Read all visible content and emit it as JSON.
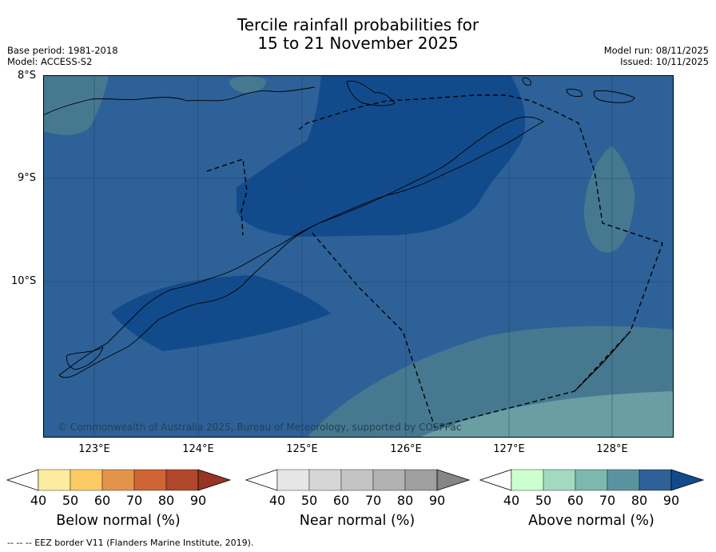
{
  "title_line1": "Tercile rainfall probabilities for",
  "title_line2": "15 to 21 November 2025",
  "base_period": "Base period: 1981-2018",
  "model": "Model: ACCESS-S2",
  "model_run": "Model run: 08/11/2025",
  "issued": "Issued: 10/11/2025",
  "lat_labels": [
    "8°S",
    "9°S",
    "10°S"
  ],
  "lon_labels": [
    "123°E",
    "124°E",
    "125°E",
    "126°E",
    "127°E",
    "128°E"
  ],
  "copyright": "© Commonwealth of Australia 2025, Bureau of Meteorology, supported by COSPPac",
  "colorbars": [
    {
      "label": "Below normal (%)",
      "ticks": [
        "40",
        "50",
        "60",
        "70",
        "80",
        "90"
      ],
      "colors": [
        "#ffffff",
        "#fdeba0",
        "#fccb64",
        "#e3944a",
        "#cf6534",
        "#b0462a",
        "#983422"
      ]
    },
    {
      "label": "Near normal (%)",
      "ticks": [
        "40",
        "50",
        "60",
        "70",
        "80",
        "90"
      ],
      "colors": [
        "#ffffff",
        "#e6e6e6",
        "#d6d6d6",
        "#c4c4c4",
        "#b2b2b2",
        "#9f9f9f",
        "#858585"
      ]
    },
    {
      "label": "Above normal (%)",
      "ticks": [
        "40",
        "50",
        "60",
        "70",
        "80",
        "90"
      ],
      "colors": [
        "#ffffff",
        "#ccffcf",
        "#a2d9c0",
        "#7cb8b0",
        "#5a93a0",
        "#2e6197",
        "#124b8c"
      ]
    }
  ],
  "footer": "--  --  -- EEZ border V11 (Flanders Marine Institute, 2019).",
  "map_colors": {
    "dark": "#124b8c",
    "mid": "#2e6197",
    "light": "#46798f",
    "lighter": "#6a9ea3"
  }
}
